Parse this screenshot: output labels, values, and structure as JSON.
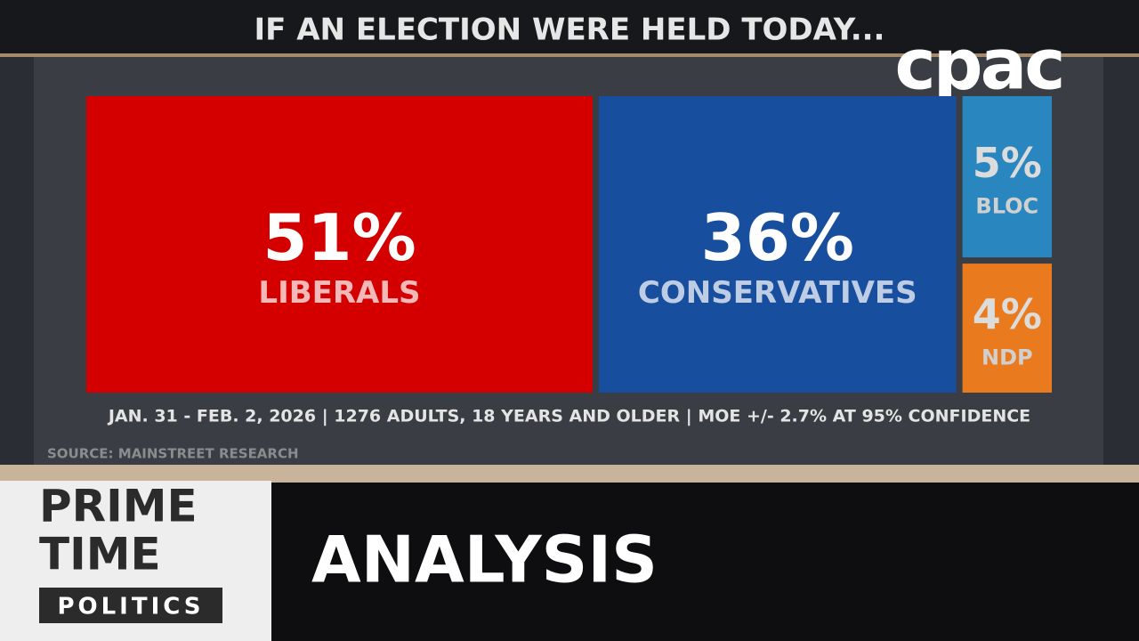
{
  "chart_data": {
    "type": "treemap",
    "title": "IF AN ELECTION WERE HELD TODAY...",
    "categories": [
      "LIBERALS",
      "CONSERVATIVES",
      "BLOC",
      "NDP"
    ],
    "values": [
      51,
      36,
      5,
      4
    ],
    "value_labels": [
      "51%",
      "36%",
      "5%",
      "4%"
    ],
    "colors": [
      "#d40000",
      "#184e9e",
      "#2a86bf",
      "#ea7a1e"
    ],
    "note": "JAN. 31 - FEB. 2, 2026 | 1276 ADULTS, 18 YEARS AND OLDER | MOE +/- 2.7% AT 95% CONFIDENCE",
    "source": "SOURCE: MAINSTREET RESEARCH"
  },
  "overlay": {
    "logo": "cpac",
    "show_lines": [
      "PRIME",
      "TIME",
      "POLITICS"
    ],
    "segment": "ANALYSIS"
  }
}
